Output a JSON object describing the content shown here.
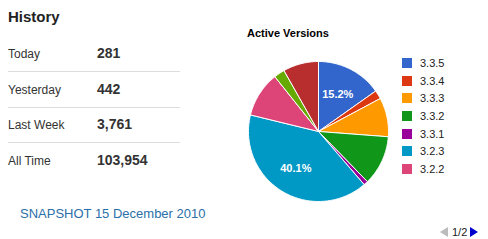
{
  "history": {
    "title": "History",
    "rows": [
      [
        "Today",
        "281"
      ],
      [
        "Yesterday",
        "442"
      ],
      [
        "Last Week",
        "3,761"
      ],
      [
        "All Time",
        "103,954"
      ]
    ]
  },
  "snapshot": "SNAPSHOT 15 December 2010",
  "chart_data": {
    "type": "pie",
    "title": "Active Versions",
    "categories": [
      "3.3.5",
      "3.3.4",
      "3.3.3",
      "3.3.2",
      "3.3.1",
      "3.2.3",
      "3.2.2",
      null,
      null
    ],
    "values": [
      15.2,
      2,
      9,
      11.5,
      1,
      40.1,
      10.5,
      2.5,
      8.2
    ],
    "value_labels": [
      "15.2%",
      null,
      null,
      null,
      null,
      "40.1%",
      null,
      null,
      null
    ],
    "colors": [
      "#3366cc",
      "#dc3912",
      "#ff9900",
      "#109618",
      "#990099",
      "#0099c6",
      "#dd4477",
      "#66aa00",
      "#b82e2e"
    ],
    "data_labels": true,
    "legend": "right",
    "pager": "1/2"
  }
}
